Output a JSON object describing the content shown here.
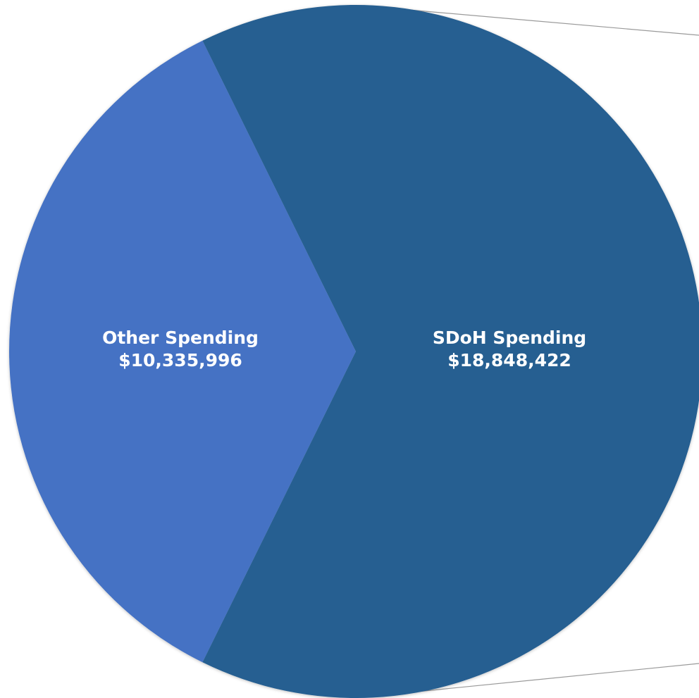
{
  "chart_data": {
    "type": "pie",
    "title": "",
    "slices": [
      {
        "name": "Other Spending",
        "value": 10335996,
        "value_label": "$10,335,996",
        "color": "#4472c4"
      },
      {
        "name": "SDoH Spending",
        "value": 18848422,
        "value_label": "$18,848,422",
        "color": "#255e91"
      }
    ],
    "legend": "none",
    "exploded": "bar-of-pie connector lines from SDoH slice to the right"
  }
}
